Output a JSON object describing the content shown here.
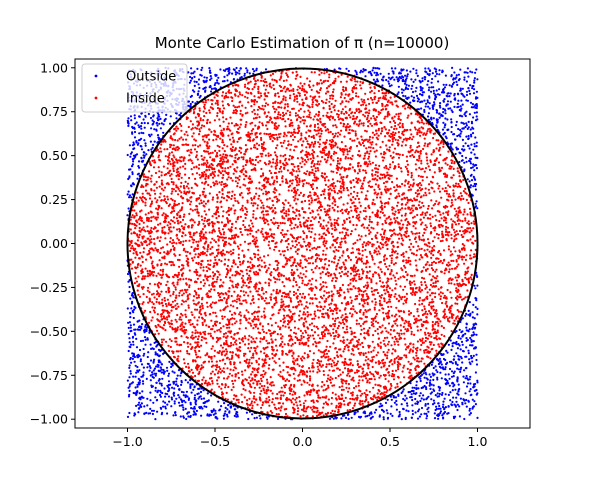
{
  "chart_data": {
    "type": "scatter",
    "title": "Monte Carlo Estimation of π (n=10000)",
    "xlabel": "",
    "ylabel": "",
    "n": 10000,
    "xlim": [
      -1.3,
      1.3
    ],
    "ylim": [
      -1.05,
      1.05
    ],
    "x_ticks": [
      -1.0,
      -0.5,
      0.0,
      0.5,
      1.0
    ],
    "x_tick_labels": [
      "−1.0",
      "−0.5",
      "0.0",
      "0.5",
      "1.0"
    ],
    "y_ticks": [
      1.0,
      0.75,
      0.5,
      0.25,
      0.0,
      -0.25,
      -0.5,
      -0.75,
      -1.0
    ],
    "y_tick_labels": [
      "1.00",
      "0.75",
      "0.50",
      "0.25",
      "0.00",
      "−0.25",
      "−0.50",
      "−0.75",
      "−1.00"
    ],
    "grid": false,
    "legend_position": "top-left",
    "series": [
      {
        "name": "Outside",
        "color": "#0000ff",
        "region": "outside unit circle",
        "domain": [
          -1,
          1
        ]
      },
      {
        "name": "Inside",
        "color": "#ff0000",
        "region": "inside unit circle",
        "domain": [
          -1,
          1
        ]
      }
    ],
    "annotations": [
      {
        "type": "circle",
        "center": [
          0,
          0
        ],
        "radius": 1,
        "color": "#000000"
      }
    ]
  }
}
